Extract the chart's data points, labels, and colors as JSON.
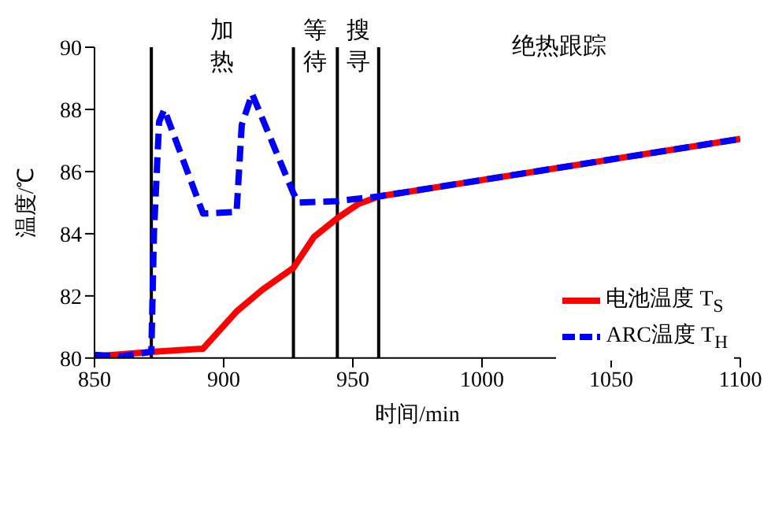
{
  "chart_data": {
    "type": "line",
    "xlabel": "时间/min",
    "ylabel": "温度/℃",
    "xlim": [
      850,
      1100
    ],
    "xticks": [
      850,
      900,
      950,
      1000,
      1050,
      1100
    ],
    "ylim": [
      80,
      90
    ],
    "yticks": [
      80,
      82,
      84,
      86,
      88,
      90
    ],
    "grid": false,
    "legend": "bottom right",
    "series": [
      {
        "name": "电池温度 T$_{S}$",
        "color": "#ff0000",
        "line_style": "solid",
        "x": [
          850,
          872,
          892,
          905,
          915,
          927,
          935,
          944,
          952,
          960,
          1100
        ],
        "values": [
          80.05,
          80.2,
          80.3,
          81.5,
          82.2,
          82.9,
          83.9,
          84.5,
          84.95,
          85.2,
          87.05
        ]
      },
      {
        "name": "ARC温度 T$_{H}$",
        "color": "#0000ff",
        "line_style": "dashed",
        "x": [
          850,
          860,
          872,
          873,
          875,
          877,
          892,
          905,
          907,
          911,
          927,
          929,
          944,
          960,
          1100
        ],
        "values": [
          80.1,
          80.05,
          80.2,
          84,
          87.6,
          88,
          84.65,
          84.7,
          87.5,
          88.5,
          85.3,
          85,
          85.05,
          85.2,
          87.05
        ]
      }
    ],
    "ref_lines": [
      {
        "axis": "x",
        "value": 872,
        "color": "#000000"
      },
      {
        "axis": "x",
        "value": 927,
        "color": "#000000"
      },
      {
        "axis": "x",
        "value": 944,
        "color": "#000000"
      },
      {
        "axis": "x",
        "value": 960,
        "color": "#000000"
      }
    ],
    "annotations": [
      "加热",
      "等待",
      "搜寻",
      "绝热跟踪"
    ]
  }
}
